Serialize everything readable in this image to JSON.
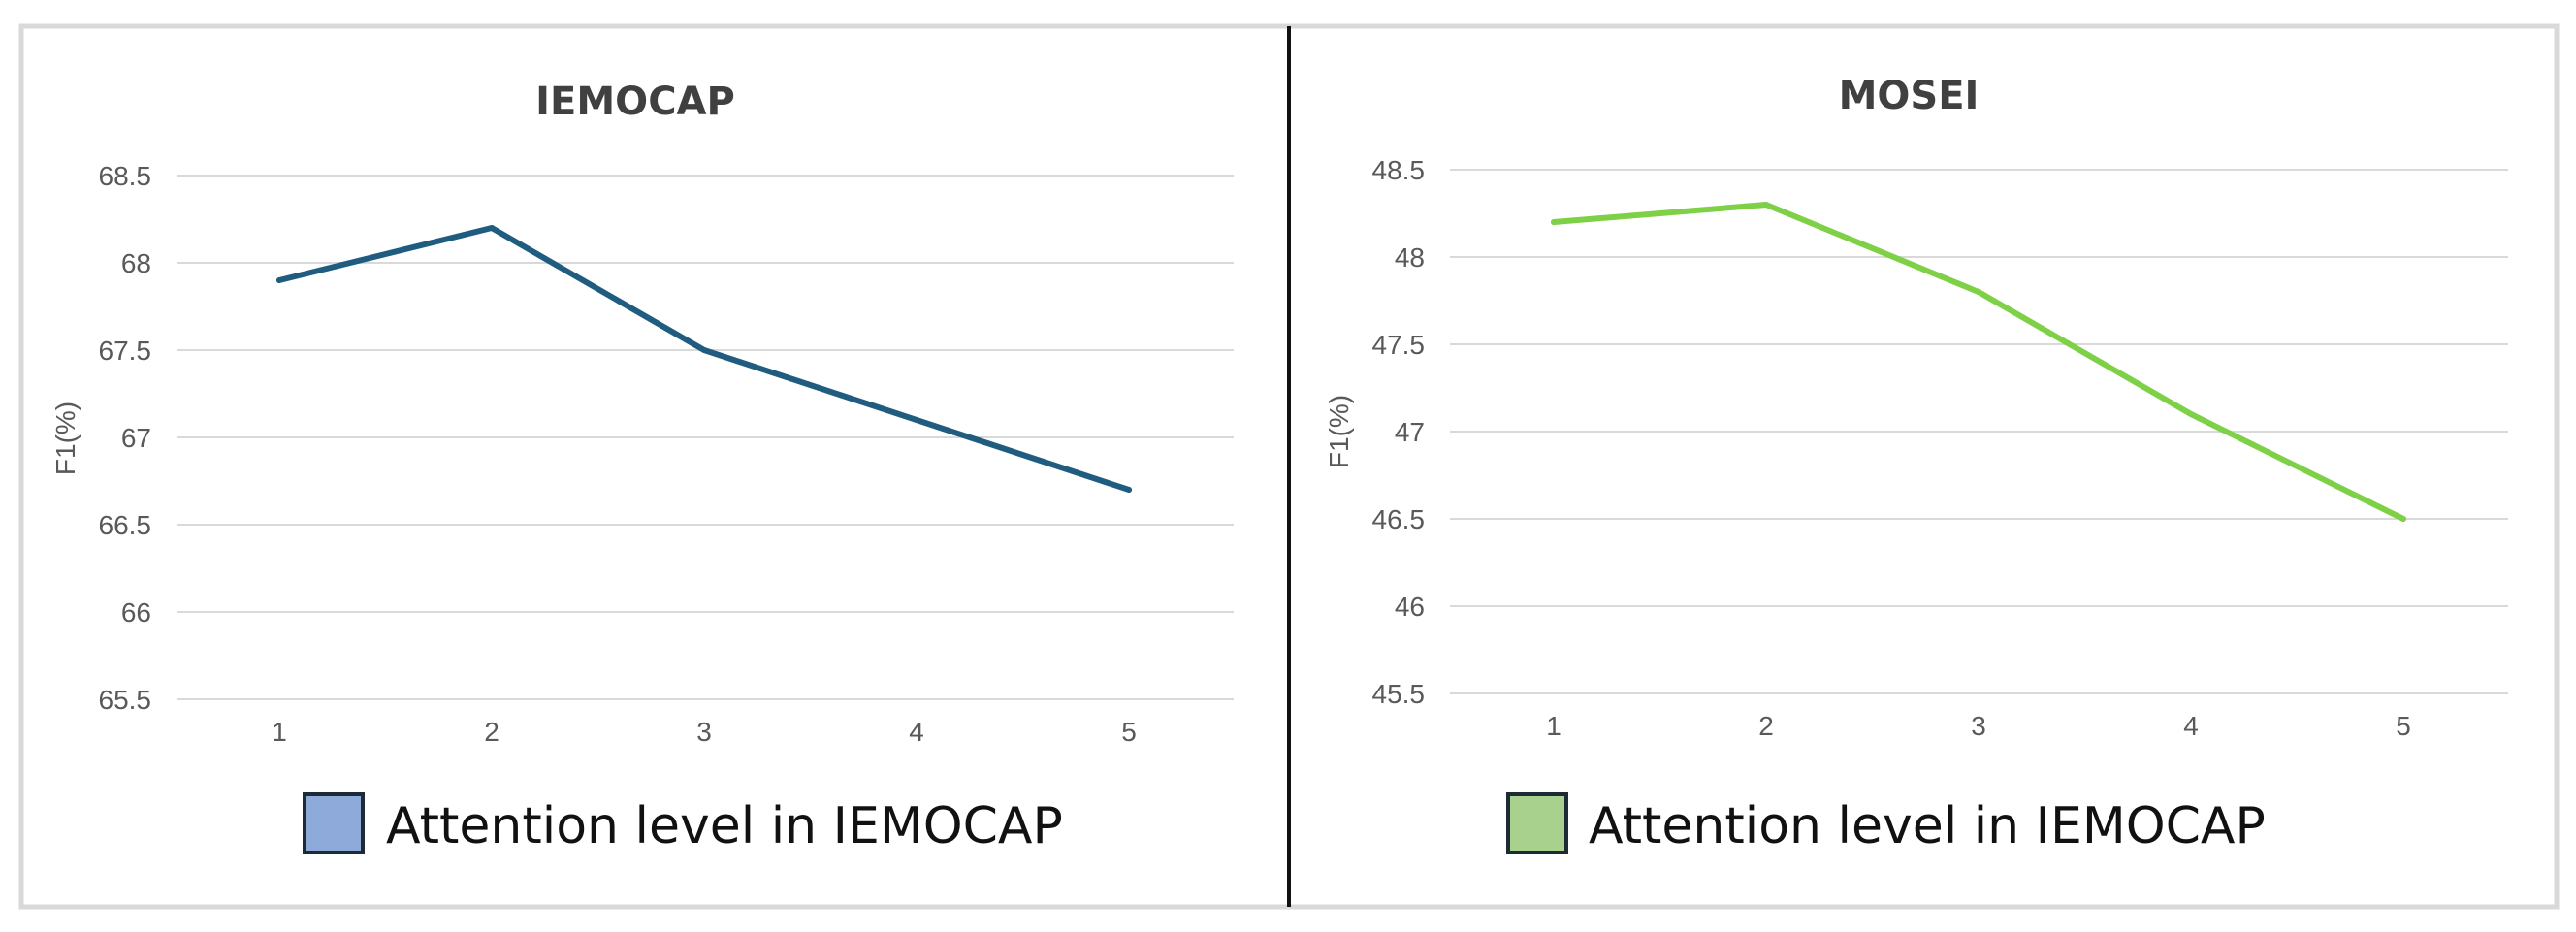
{
  "chart_data": [
    {
      "type": "line",
      "title": "IEMOCAP",
      "xlabel": "",
      "ylabel": "F1(%)",
      "categories": [
        "1",
        "2",
        "3",
        "4",
        "5"
      ],
      "yticks": [
        "65.5",
        "66",
        "66.5",
        "67",
        "67.5",
        "68",
        "68.5"
      ],
      "ylim": [
        65.5,
        68.5
      ],
      "grid": true,
      "series": [
        {
          "name": "Attention level in IEMOCAP",
          "values": [
            67.9,
            68.2,
            67.5,
            67.1,
            66.7
          ],
          "color": "#1f5c7f",
          "legend_color": "#8eaadb"
        }
      ],
      "legend": "bottom"
    },
    {
      "type": "line",
      "title": "MOSEI",
      "xlabel": "",
      "ylabel": "F1(%)",
      "categories": [
        "1",
        "2",
        "3",
        "4",
        "5"
      ],
      "yticks": [
        "45.5",
        "46",
        "46.5",
        "47",
        "47.5",
        "48",
        "48.5"
      ],
      "ylim": [
        45.5,
        48.5
      ],
      "grid": true,
      "series": [
        {
          "name": "Attention level in IEMOCAP",
          "values": [
            48.2,
            48.3,
            47.8,
            47.1,
            46.5
          ],
          "color": "#7ed046",
          "legend_color": "#a9d18e"
        }
      ],
      "legend": "bottom"
    }
  ]
}
